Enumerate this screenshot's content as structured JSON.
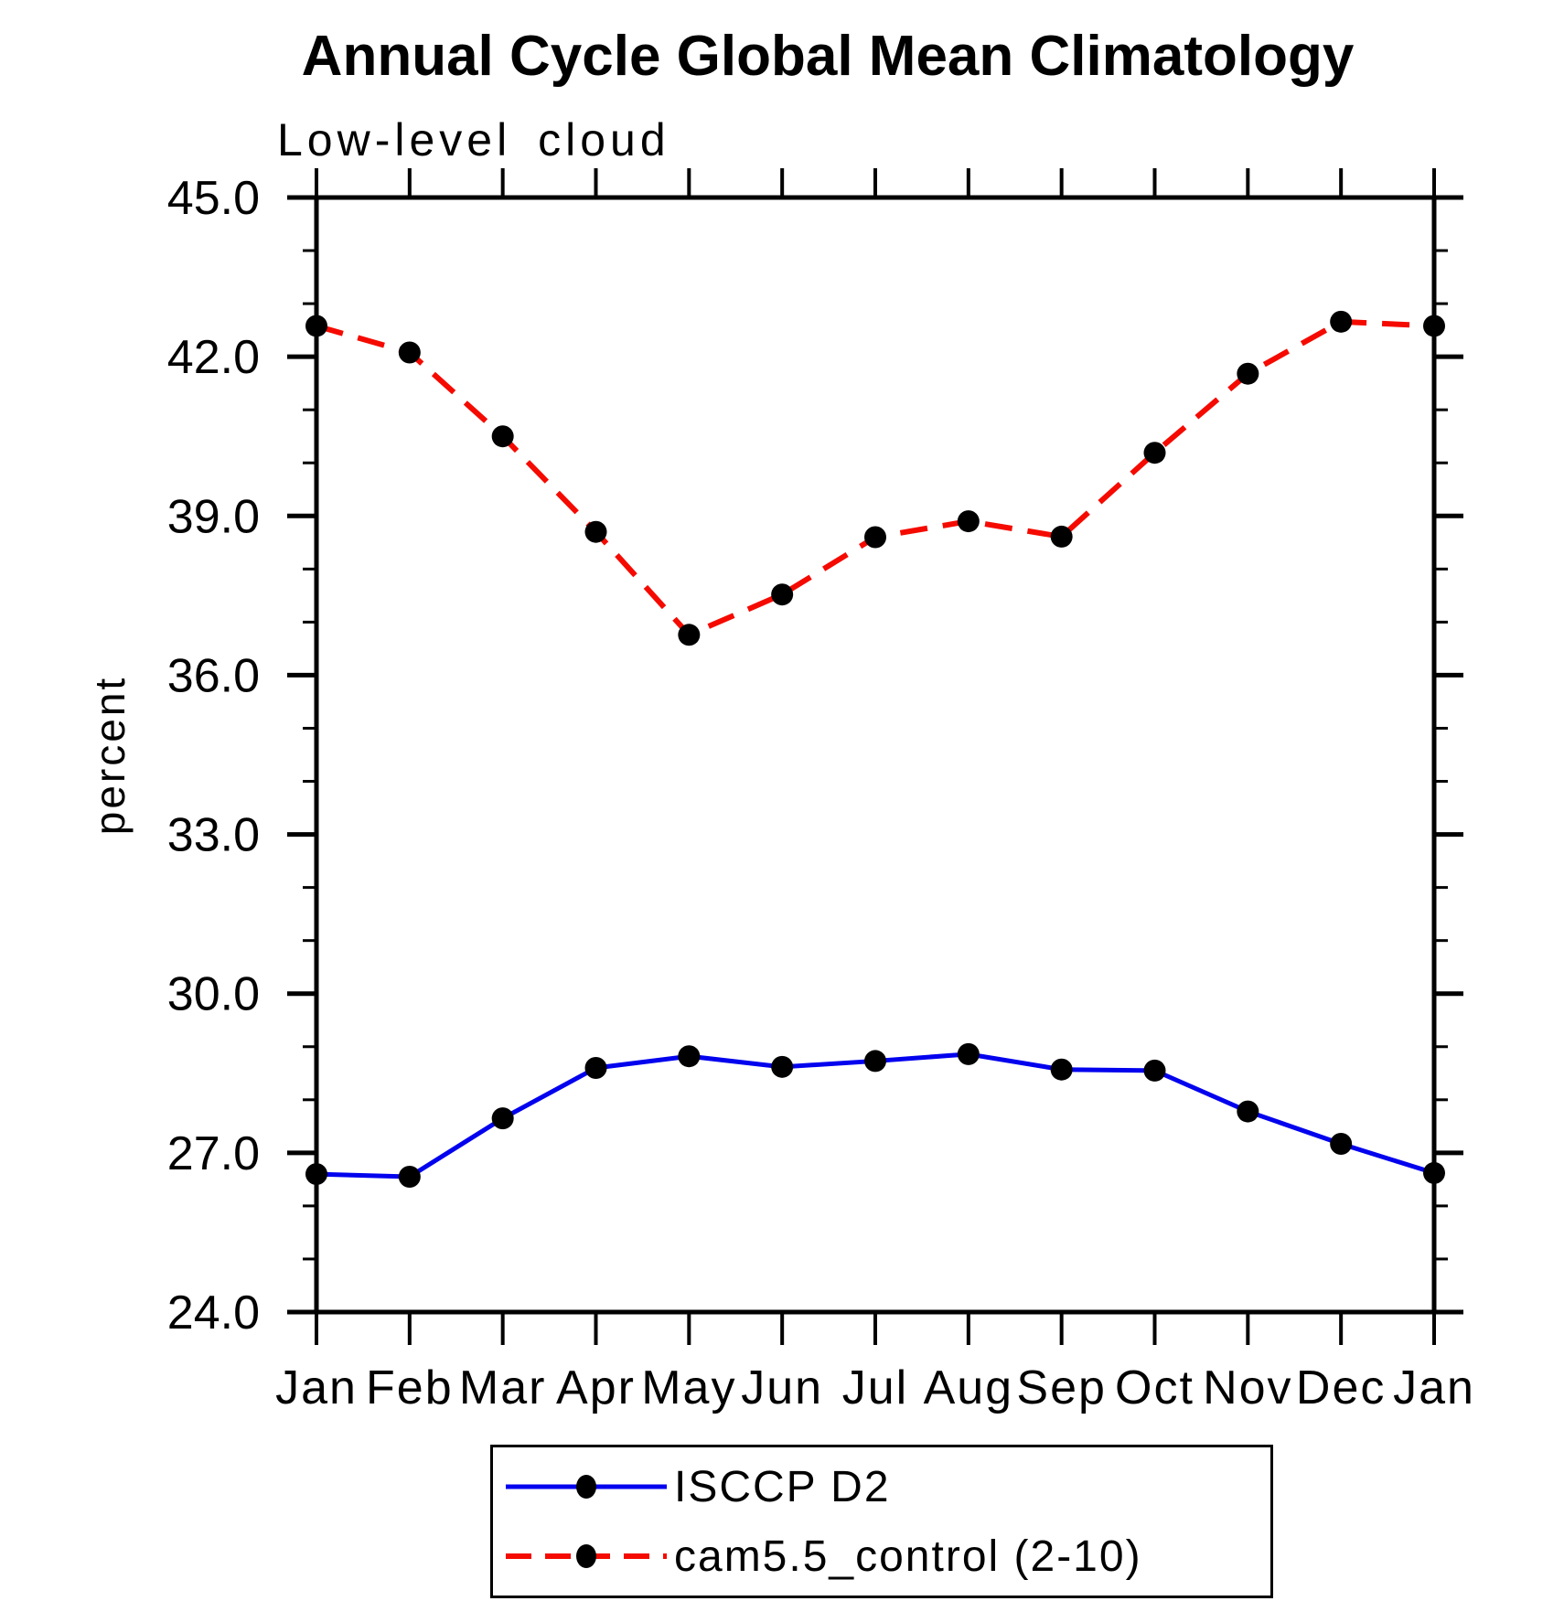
{
  "title": "Annual Cycle Global Mean Climatology",
  "subtitle": "Low-level cloud",
  "ylabel": "percent",
  "chart_data": {
    "type": "line",
    "x_categories": [
      "Jan",
      "Feb",
      "Mar",
      "Apr",
      "May",
      "Jun",
      "Jul",
      "Aug",
      "Sep",
      "Oct",
      "Nov",
      "Dec",
      "Jan"
    ],
    "ylim": [
      24.0,
      45.0
    ],
    "ytick_major_interval": 3.0,
    "ytick_minor_interval": 1.0,
    "ytick_labels": [
      "24.0",
      "27.0",
      "30.0",
      "33.0",
      "36.0",
      "39.0",
      "42.0",
      "45.0"
    ],
    "grid": false,
    "legend_position": "bottom",
    "series": [
      {
        "name": "ISCCP D2",
        "color": "#0202ee",
        "line_style": "solid",
        "marker": "black-dot",
        "values": [
          26.6,
          26.55,
          27.65,
          28.6,
          28.82,
          28.62,
          28.73,
          28.86,
          28.57,
          28.55,
          27.78,
          27.17,
          26.62
        ]
      },
      {
        "name": "cam5.5_control (2-10)",
        "color": "#f50a00",
        "line_style": "dashed",
        "marker": "black-dot",
        "values": [
          42.58,
          42.08,
          40.5,
          38.7,
          36.76,
          37.52,
          38.6,
          38.9,
          38.61,
          40.19,
          41.68,
          42.66,
          42.58
        ]
      }
    ]
  },
  "colors": {
    "axis": "#000000",
    "background": "#ffffff",
    "marker": "#000000"
  }
}
